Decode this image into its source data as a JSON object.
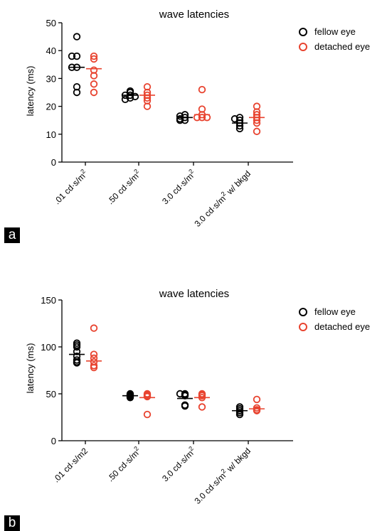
{
  "colors": {
    "fellow": "#000000",
    "detached": "#e8432f"
  },
  "chart_data": [
    {
      "panel_label": "a",
      "type": "scatter",
      "title": "wave latencies",
      "ylabel": "latency (ms)",
      "ylim": [
        0,
        50
      ],
      "yticks": [
        0,
        10,
        20,
        30,
        40,
        50
      ],
      "categories": [
        {
          "base": ".01 cd·s/m",
          "sup": "2",
          "suffix": ""
        },
        {
          "base": ".50 cd·s/m",
          "sup": "2",
          "suffix": ""
        },
        {
          "base": "3.0 cd·s/m",
          "sup": "2",
          "suffix": ""
        },
        {
          "base": "3.0 cd·s/m",
          "sup": "2",
          "suffix": " w/ bkgd"
        }
      ],
      "legend": [
        "fellow eye",
        "detached eye"
      ],
      "legend_position": "top-right",
      "series": [
        {
          "name": "fellow eye",
          "color": "#000000",
          "groups": [
            {
              "means": 34,
              "points": [
                45,
                38,
                38,
                34,
                34,
                27,
                25
              ]
            },
            {
              "means": 24,
              "points": [
                25.5,
                25,
                24,
                24,
                23.5,
                23,
                22.5
              ]
            },
            {
              "means": 16,
              "points": [
                17,
                16.5,
                16,
                15.5,
                15,
                15
              ]
            },
            {
              "means": 14,
              "points": [
                16,
                15.5,
                15,
                14,
                13,
                12
              ]
            }
          ]
        },
        {
          "name": "detached eye",
          "color": "#e8432f",
          "groups": [
            {
              "means": 33.5,
              "points": [
                38,
                37,
                33,
                31,
                28,
                25
              ]
            },
            {
              "means": 24,
              "points": [
                27,
                25,
                24,
                23,
                22,
                20
              ]
            },
            {
              "means": 17,
              "points": [
                26,
                19,
                17,
                16,
                16,
                16
              ]
            },
            {
              "means": 16,
              "points": [
                20,
                18,
                17,
                16,
                15,
                14,
                11
              ]
            }
          ]
        }
      ]
    },
    {
      "panel_label": "b",
      "type": "scatter",
      "title": "wave latencies",
      "ylabel": "latency (ms)",
      "ylim": [
        0,
        150
      ],
      "yticks": [
        0,
        50,
        100,
        150
      ],
      "categories": [
        {
          "base": ".01 cd·s/m2",
          "sup": "",
          "suffix": ""
        },
        {
          "base": ".50 cd·s/m",
          "sup": "2",
          "suffix": ""
        },
        {
          "base": "3.0 cd·s/m",
          "sup": "2",
          "suffix": ""
        },
        {
          "base": "3.0 cd·s/m",
          "sup": "2",
          "suffix": " w/ bkgd"
        }
      ],
      "legend": [
        "fellow eye",
        "detached eye"
      ],
      "legend_position": "top-right",
      "series": [
        {
          "name": "fellow eye",
          "color": "#000000",
          "groups": [
            {
              "means": 92,
              "points": [
                104,
                102,
                100,
                95,
                90,
                86,
                84,
                83
              ]
            },
            {
              "means": 48,
              "points": [
                50,
                49,
                48,
                47,
                46
              ]
            },
            {
              "means": 45,
              "points": [
                50,
                50,
                49,
                48,
                38,
                37
              ]
            },
            {
              "means": 32,
              "points": [
                36,
                34,
                32,
                30,
                28
              ]
            }
          ]
        },
        {
          "name": "detached eye",
          "color": "#e8432f",
          "groups": [
            {
              "means": 85,
              "points": [
                120,
                92,
                88,
                84,
                80,
                78
              ]
            },
            {
              "means": 46,
              "points": [
                50,
                49,
                48,
                47,
                28
              ]
            },
            {
              "means": 46,
              "points": [
                50,
                49,
                48,
                46,
                36
              ]
            },
            {
              "means": 34,
              "points": [
                44,
                35,
                33,
                32
              ]
            }
          ]
        }
      ]
    }
  ]
}
